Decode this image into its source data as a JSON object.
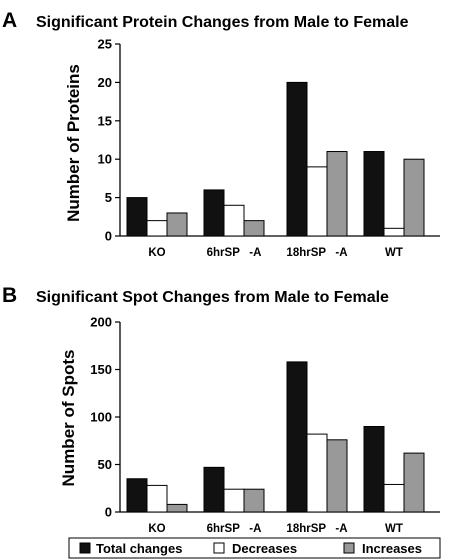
{
  "colors": {
    "total": "#111111",
    "decreases": "#ffffff",
    "increases": "#999999",
    "stroke": "#000000"
  },
  "chart_data": [
    {
      "panel": "A",
      "type": "bar",
      "title": "Significant Protein Changes from Male to Female",
      "ylabel": "Number of Proteins",
      "xlabel": "",
      "ylim": [
        0,
        25
      ],
      "yticks": [
        0,
        5,
        10,
        15,
        20,
        25
      ],
      "categories": [
        "KO",
        "6hrSP   -A",
        "18hrSP   -A",
        "WT"
      ],
      "series": [
        {
          "name": "Total changes",
          "values": [
            5,
            6,
            20,
            11
          ]
        },
        {
          "name": "Decreases",
          "values": [
            2,
            4,
            9,
            1
          ]
        },
        {
          "name": "Increases",
          "values": [
            3,
            2,
            11,
            10
          ]
        }
      ]
    },
    {
      "panel": "B",
      "type": "bar",
      "title": "Significant Spot Changes from Male to Female",
      "ylabel": "Number of Spots",
      "xlabel": "",
      "ylim": [
        0,
        200
      ],
      "yticks": [
        0,
        50,
        100,
        150,
        200
      ],
      "categories": [
        "KO",
        "6hrSP   -A",
        "18hrSP   -A",
        "WT"
      ],
      "series": [
        {
          "name": "Total changes",
          "values": [
            35,
            47,
            158,
            90
          ]
        },
        {
          "name": "Decreases",
          "values": [
            28,
            24,
            82,
            29
          ]
        },
        {
          "name": "Increases",
          "values": [
            8,
            24,
            76,
            62
          ]
        }
      ]
    }
  ],
  "legend": {
    "entries": [
      "Total changes",
      "Decreases",
      "Increases"
    ]
  }
}
